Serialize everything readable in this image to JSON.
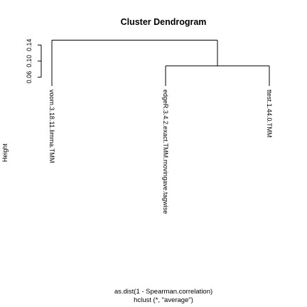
{
  "chart_data": {
    "type": "dendrogram",
    "title": "Cluster Dendrogram",
    "ylabel": "Height",
    "xlabel": "as.dist(1 - Spearman.correlation)",
    "sublabel": "hclust (*, \"average\")",
    "ylim": [
      0.04,
      0.16
    ],
    "yticks": [
      0.06,
      0.1,
      0.14
    ],
    "ytick_labels": [
      "0.06",
      "0.10",
      "0.14"
    ],
    "leaves": [
      "voom.3.18.11.limma.TMM",
      "edgeR.3.4.2.exact.TMM.movingave.tagwise",
      "ttest.1.44.0.TMM"
    ],
    "merges": [
      {
        "left": 1,
        "right": 2,
        "height": 0.088
      },
      {
        "left": 0,
        "right": "merge1",
        "height": 0.152
      }
    ]
  }
}
